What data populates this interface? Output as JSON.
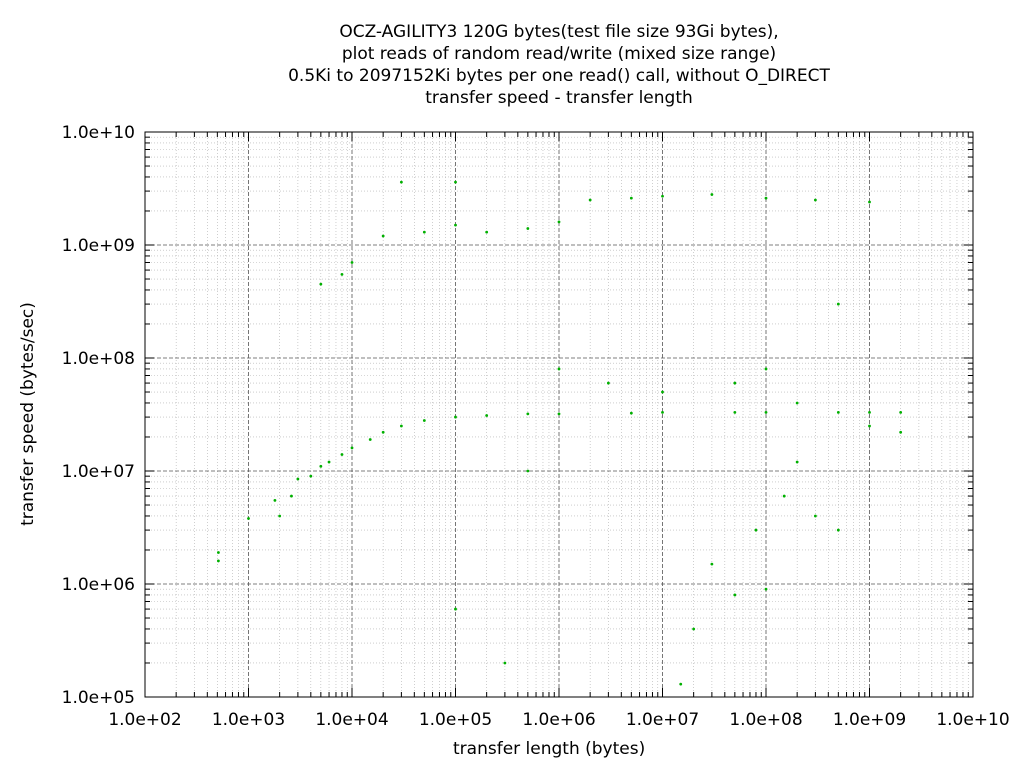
{
  "chart_data": {
    "type": "scatter",
    "title_lines": [
      "OCZ-AGILITY3 120G bytes(test file size 93Gi bytes),",
      "plot reads of random read/write (mixed size range)",
      "0.5Ki to 2097152Ki bytes per one read() call, without O_DIRECT",
      "transfer speed - transfer length"
    ],
    "xlabel": "transfer length (bytes)",
    "ylabel": "transfer speed (bytes/sec)",
    "x_scale": "log",
    "y_scale": "log",
    "xlim": [
      100,
      10000000000
    ],
    "ylim": [
      100000,
      10000000000
    ],
    "x_ticks": [
      "1.0e+02",
      "1.0e+03",
      "1.0e+04",
      "1.0e+05",
      "1.0e+06",
      "1.0e+07",
      "1.0e+08",
      "1.0e+09",
      "1.0e+10"
    ],
    "y_ticks": [
      "1.0e+05",
      "1.0e+06",
      "1.0e+07",
      "1.0e+08",
      "1.0e+09",
      "1.0e+10"
    ],
    "grid": true,
    "point_color": "#00b000",
    "series": [
      {
        "points": [
          [
            512,
            1600000
          ],
          [
            512,
            1900000
          ],
          [
            1000,
            3800000
          ],
          [
            1800,
            5500000
          ],
          [
            2000,
            4000000
          ],
          [
            2600,
            6000000
          ],
          [
            3000,
            8500000
          ],
          [
            4000,
            9000000
          ],
          [
            5000,
            11000000
          ],
          [
            6000,
            12000000
          ],
          [
            8000,
            14000000
          ],
          [
            10000,
            16000000
          ],
          [
            15000,
            19000000
          ],
          [
            20000,
            22000000
          ],
          [
            30000,
            25000000
          ],
          [
            50000,
            28000000
          ],
          [
            100000,
            30000000
          ],
          [
            200000,
            31000000
          ],
          [
            500000,
            32000000
          ],
          [
            1000000,
            32000000
          ],
          [
            5000000,
            32500000
          ],
          [
            10000000,
            33000000
          ],
          [
            50000000,
            33000000
          ],
          [
            100000000,
            33000000
          ],
          [
            500000000,
            33000000
          ],
          [
            1000000000,
            33000000
          ],
          [
            2000000000,
            33000000
          ],
          [
            30000,
            3600000000
          ],
          [
            100000,
            3600000000
          ],
          [
            20000,
            1200000000
          ],
          [
            50000,
            1300000000
          ],
          [
            100000,
            1500000000
          ],
          [
            200000,
            1300000000
          ],
          [
            500000,
            1400000000
          ],
          [
            1000000,
            1600000000
          ],
          [
            2000000,
            2500000000
          ],
          [
            5000000,
            2600000000
          ],
          [
            10000000,
            2700000000
          ],
          [
            30000000,
            2800000000
          ],
          [
            100000000,
            2600000000
          ],
          [
            300000000,
            2500000000
          ],
          [
            1000000000,
            2400000000
          ],
          [
            5000,
            450000000
          ],
          [
            8000,
            550000000
          ],
          [
            10000,
            700000000
          ],
          [
            100000,
            600000
          ],
          [
            300000,
            200000
          ],
          [
            500000,
            10000000
          ],
          [
            1000000,
            80000000
          ],
          [
            3000000,
            60000000
          ],
          [
            10000000,
            50000000
          ],
          [
            20000000,
            400000
          ],
          [
            15000000,
            130000
          ],
          [
            30000000,
            1500000
          ],
          [
            50000000,
            800000
          ],
          [
            80000000,
            3000000
          ],
          [
            100000000,
            900000
          ],
          [
            150000000,
            6000000
          ],
          [
            200000000,
            12000000
          ],
          [
            300000000,
            4000000
          ],
          [
            500000000,
            3000000
          ],
          [
            500000000,
            300000000
          ],
          [
            50000000,
            60000000
          ],
          [
            100000000,
            80000000
          ],
          [
            200000000,
            40000000
          ],
          [
            1000000000,
            25000000
          ],
          [
            2000000000,
            22000000
          ]
        ]
      }
    ]
  }
}
